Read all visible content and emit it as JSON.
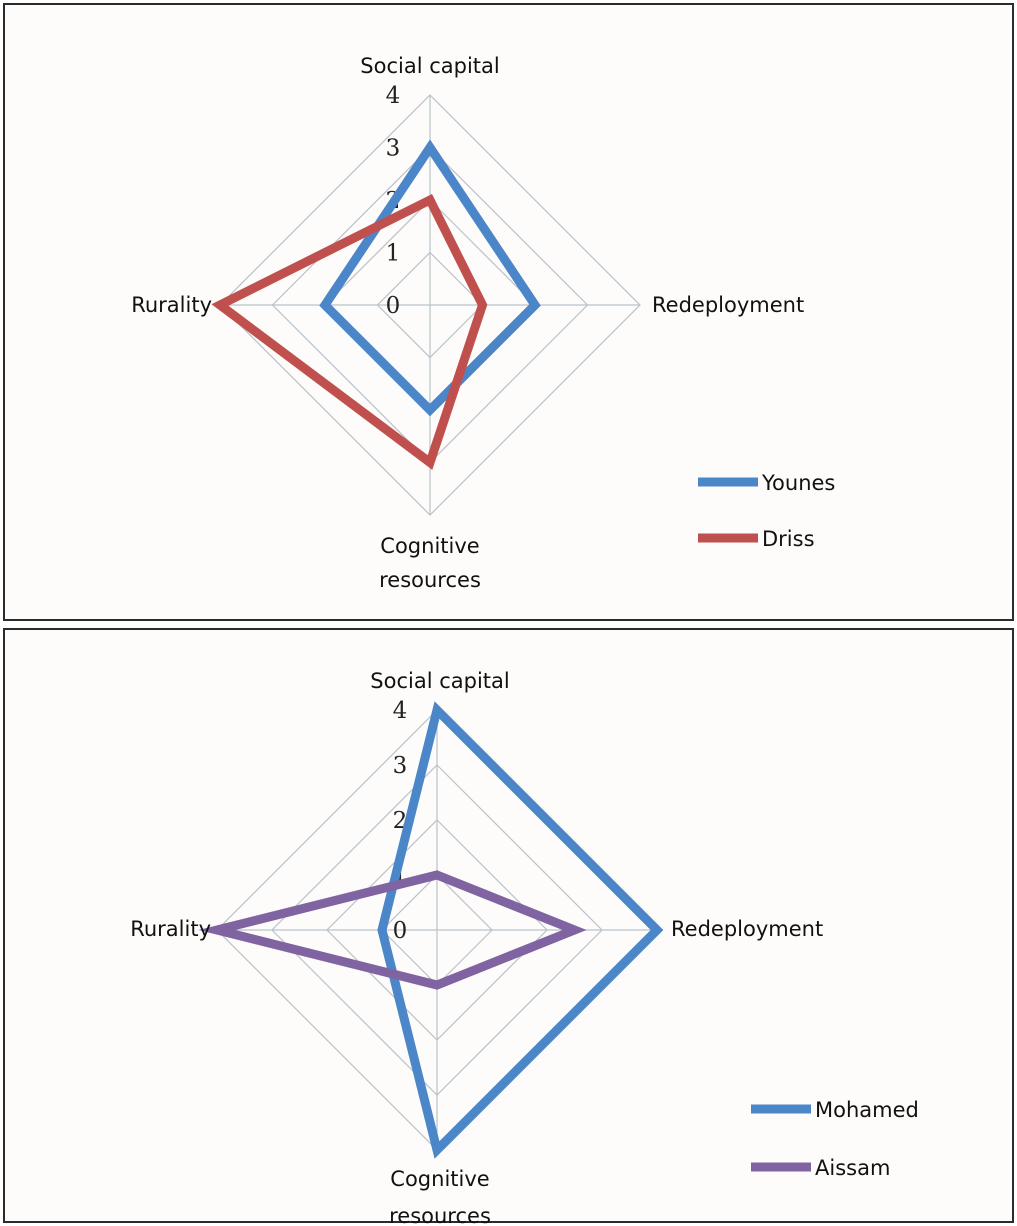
{
  "chart_data": [
    {
      "type": "radar",
      "axes": [
        "Social capital",
        "Redeployment",
        "Cognitive resources",
        "Rurality"
      ],
      "axis_label_lines": [
        [
          "Social capital"
        ],
        [
          "Redeployment"
        ],
        [
          "Cognitive",
          "resources"
        ],
        [
          "Rurality"
        ]
      ],
      "rlim": [
        0,
        4
      ],
      "ticks": [
        "0",
        "1",
        "2",
        "3",
        "4"
      ],
      "grid": true,
      "legend_position": "bottom-right",
      "series": [
        {
          "name": "Younes",
          "values": [
            3,
            2,
            2,
            2
          ],
          "color": "#4a86c8"
        },
        {
          "name": "Driss",
          "values": [
            2,
            1,
            3,
            4
          ],
          "color": "#c0504d"
        }
      ]
    },
    {
      "type": "radar",
      "axes": [
        "Social capital",
        "Redeployment",
        "Cognitive resources",
        "Rurality"
      ],
      "axis_label_lines": [
        [
          "Social capital"
        ],
        [
          "Redeployment"
        ],
        [
          "Cognitive",
          "resources"
        ],
        [
          "Rurality"
        ]
      ],
      "rlim": [
        0,
        4
      ],
      "ticks": [
        "0",
        "1",
        "2",
        "3",
        "4"
      ],
      "grid": true,
      "legend_position": "bottom-right",
      "series": [
        {
          "name": "Mohamed",
          "values": [
            4,
            4,
            4,
            1
          ],
          "color": "#4a86c8"
        },
        {
          "name": "Aissam",
          "values": [
            1,
            2.5,
            1,
            4
          ],
          "color": "#8064a2"
        }
      ]
    }
  ]
}
